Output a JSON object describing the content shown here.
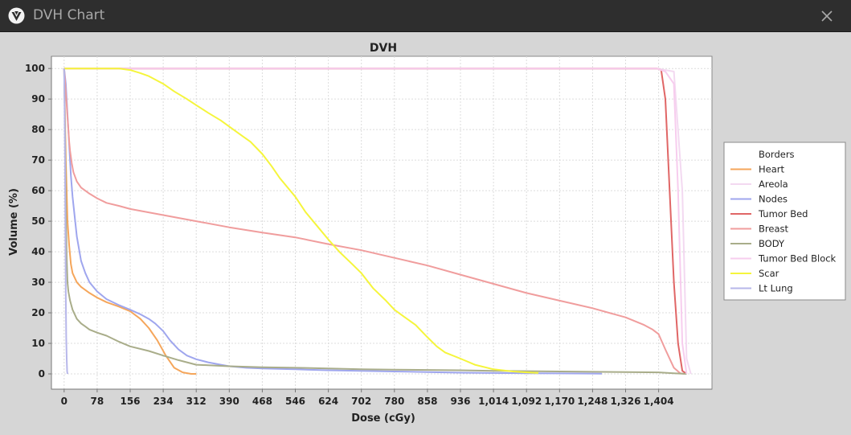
{
  "window": {
    "title": "DVH Chart"
  },
  "icons": {
    "app": "app-logo-icon",
    "close": "close-icon"
  },
  "chart_data": {
    "type": "line",
    "title": "DVH",
    "xlabel": "Dose (cGy)",
    "ylabel": "Volume (%)",
    "xlim": [
      -30,
      1530
    ],
    "ylim": [
      -5,
      104
    ],
    "grid": true,
    "legend_position": "right",
    "x_ticks": [
      0,
      78,
      156,
      234,
      312,
      390,
      468,
      546,
      624,
      702,
      780,
      858,
      936,
      1014,
      1092,
      1170,
      1248,
      1326,
      1404
    ],
    "x_tick_labels": [
      "0",
      "78",
      "156",
      "234",
      "312",
      "390",
      "468",
      "546",
      "624",
      "702",
      "780",
      "858",
      "936",
      "1,014",
      "1,092",
      "1,170",
      "1,248",
      "1,326",
      "1,404"
    ],
    "y_ticks": [
      0,
      10,
      20,
      30,
      40,
      50,
      60,
      70,
      80,
      90,
      100
    ],
    "y_tick_labels": [
      "0",
      "10",
      "20",
      "30",
      "40",
      "50",
      "60",
      "70",
      "80",
      "90",
      "100"
    ],
    "series": [
      {
        "name": "Borders",
        "color": "#ffffff",
        "x": [],
        "y": []
      },
      {
        "name": "Heart",
        "color": "#f5a65b",
        "x": [
          0,
          4,
          8,
          12,
          16,
          20,
          30,
          40,
          60,
          78,
          100,
          130,
          156,
          180,
          200,
          220,
          240,
          260,
          280,
          300,
          312
        ],
        "y": [
          100,
          70,
          50,
          42,
          36,
          33,
          30,
          28.5,
          26.5,
          25,
          23.5,
          22,
          20.5,
          18,
          15,
          11,
          6,
          2,
          0.5,
          0,
          0
        ]
      },
      {
        "name": "Areola",
        "color": "#f3d9f1",
        "x": [
          0,
          1300,
          1400,
          1440,
          1460,
          1470,
          1480
        ],
        "y": [
          100,
          100,
          100,
          99,
          60,
          5,
          0
        ]
      },
      {
        "name": "Nodes",
        "color": "#9fa6ee",
        "x": [
          0,
          4,
          8,
          12,
          16,
          20,
          30,
          40,
          50,
          60,
          78,
          100,
          130,
          156,
          180,
          200,
          215,
          234,
          250,
          270,
          290,
          312,
          340,
          370,
          390,
          430,
          468,
          546,
          624,
          702,
          780,
          858,
          936,
          1014,
          1092,
          1170,
          1248,
          1270
        ],
        "y": [
          100,
          95,
          85,
          75,
          65,
          58,
          45,
          37,
          33,
          30,
          27,
          24.5,
          22.5,
          21,
          19.5,
          18,
          16.5,
          14,
          11,
          8,
          6,
          4.8,
          3.8,
          3,
          2.5,
          2,
          1.8,
          1.5,
          1.2,
          1,
          0.8,
          0.6,
          0.4,
          0.3,
          0.2,
          0.15,
          0.1,
          0.05
        ]
      },
      {
        "name": "Tumor Bed",
        "color": "#e06666",
        "x": [
          0,
          1300,
          1400,
          1410,
          1420,
          1430,
          1440,
          1450,
          1460,
          1470
        ],
        "y": [
          100,
          100,
          100,
          99.5,
          90,
          60,
          30,
          10,
          1,
          0
        ]
      },
      {
        "name": "Breast",
        "color": "#f09d9d",
        "x": [
          0,
          2,
          4,
          6,
          8,
          10,
          12,
          14,
          18,
          22,
          30,
          40,
          60,
          78,
          100,
          130,
          156,
          234,
          312,
          390,
          468,
          546,
          624,
          702,
          780,
          858,
          936,
          1014,
          1092,
          1170,
          1248,
          1326,
          1370,
          1390,
          1404,
          1420,
          1440,
          1455,
          1465
        ],
        "y": [
          100,
          96,
          92,
          88,
          84,
          80,
          76,
          73,
          69,
          66,
          63,
          61,
          59,
          57.5,
          56,
          55,
          54,
          52,
          50,
          48,
          46.3,
          44.7,
          42.5,
          40.5,
          38,
          35.5,
          32.5,
          29.5,
          26.5,
          24,
          21.5,
          18.5,
          16,
          14.5,
          13,
          8,
          2,
          0.2,
          0
        ]
      },
      {
        "name": "BODY",
        "color": "#a9ad8a",
        "x": [
          0,
          2,
          4,
          6,
          8,
          10,
          14,
          20,
          30,
          40,
          50,
          60,
          78,
          100,
          130,
          156,
          200,
          234,
          270,
          312,
          390,
          468,
          546,
          624,
          702,
          780,
          858,
          936,
          1014,
          1092,
          1170,
          1248,
          1326,
          1404,
          1440,
          1470
        ],
        "y": [
          100,
          80,
          55,
          38,
          30,
          27,
          24,
          21,
          18,
          16.5,
          15.5,
          14.5,
          13.5,
          12.5,
          10.5,
          9,
          7.5,
          6,
          4.5,
          3,
          2.5,
          2.2,
          2,
          1.8,
          1.5,
          1.4,
          1.3,
          1.2,
          1,
          0.9,
          0.8,
          0.7,
          0.6,
          0.5,
          0.2,
          0
        ]
      },
      {
        "name": "Tumor Bed Block",
        "color": "#f7cdee",
        "x": [
          0,
          1300,
          1400,
          1420,
          1440,
          1450,
          1460,
          1470
        ],
        "y": [
          100,
          100,
          100,
          99,
          95,
          60,
          10,
          0
        ]
      },
      {
        "name": "Scar",
        "color": "#f5f53c",
        "x": [
          0,
          40,
          78,
          100,
          130,
          156,
          180,
          200,
          234,
          260,
          290,
          312,
          340,
          370,
          390,
          420,
          440,
          468,
          490,
          510,
          546,
          570,
          600,
          624,
          650,
          680,
          702,
          730,
          760,
          780,
          800,
          830,
          858,
          880,
          900,
          936,
          970,
          1014,
          1060,
          1092,
          1120
        ],
        "y": [
          100,
          100,
          100,
          100,
          100,
          99.5,
          98.5,
          97.5,
          95,
          92.5,
          90,
          88,
          85.5,
          83,
          81,
          78,
          76,
          72,
          68,
          64,
          58,
          53,
          48,
          44,
          40,
          36,
          33,
          28,
          24,
          21,
          19,
          16,
          12,
          9,
          7,
          5,
          3,
          1.5,
          0.8,
          0.5,
          0.3
        ]
      },
      {
        "name": "Lt Lung",
        "color": "#b7b7ea",
        "x": [
          0,
          1,
          2,
          3,
          4,
          5,
          6,
          7,
          8
        ],
        "y": [
          100,
          90,
          70,
          45,
          25,
          12,
          5,
          1,
          0
        ]
      }
    ]
  }
}
